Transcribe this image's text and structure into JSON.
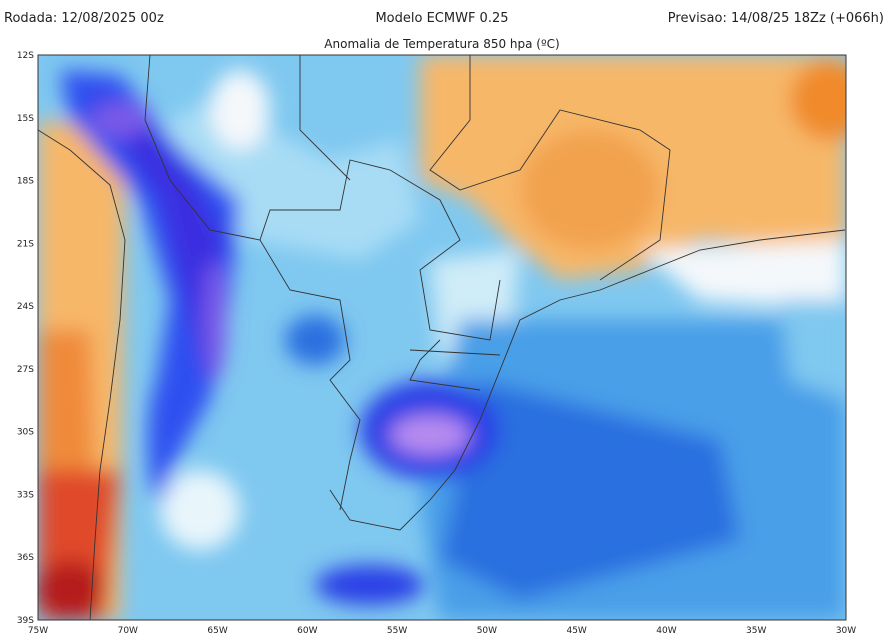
{
  "header": {
    "run": "Rodada: 12/08/2025 00z",
    "model": "Modelo ECMWF 0.25",
    "forecast": "Previsao: 14/08/25 18Zz (+066h)"
  },
  "title": "Anomalia de Temperatura 850 hpa (ºC)",
  "axes": {
    "lat": [
      "12S",
      "15S",
      "18S",
      "21S",
      "24S",
      "27S",
      "30S",
      "33S",
      "36S",
      "39S"
    ],
    "lon": [
      "75W",
      "70W",
      "65W",
      "60W",
      "55W",
      "50W",
      "45W",
      "40W",
      "35W",
      "30W"
    ]
  }
}
